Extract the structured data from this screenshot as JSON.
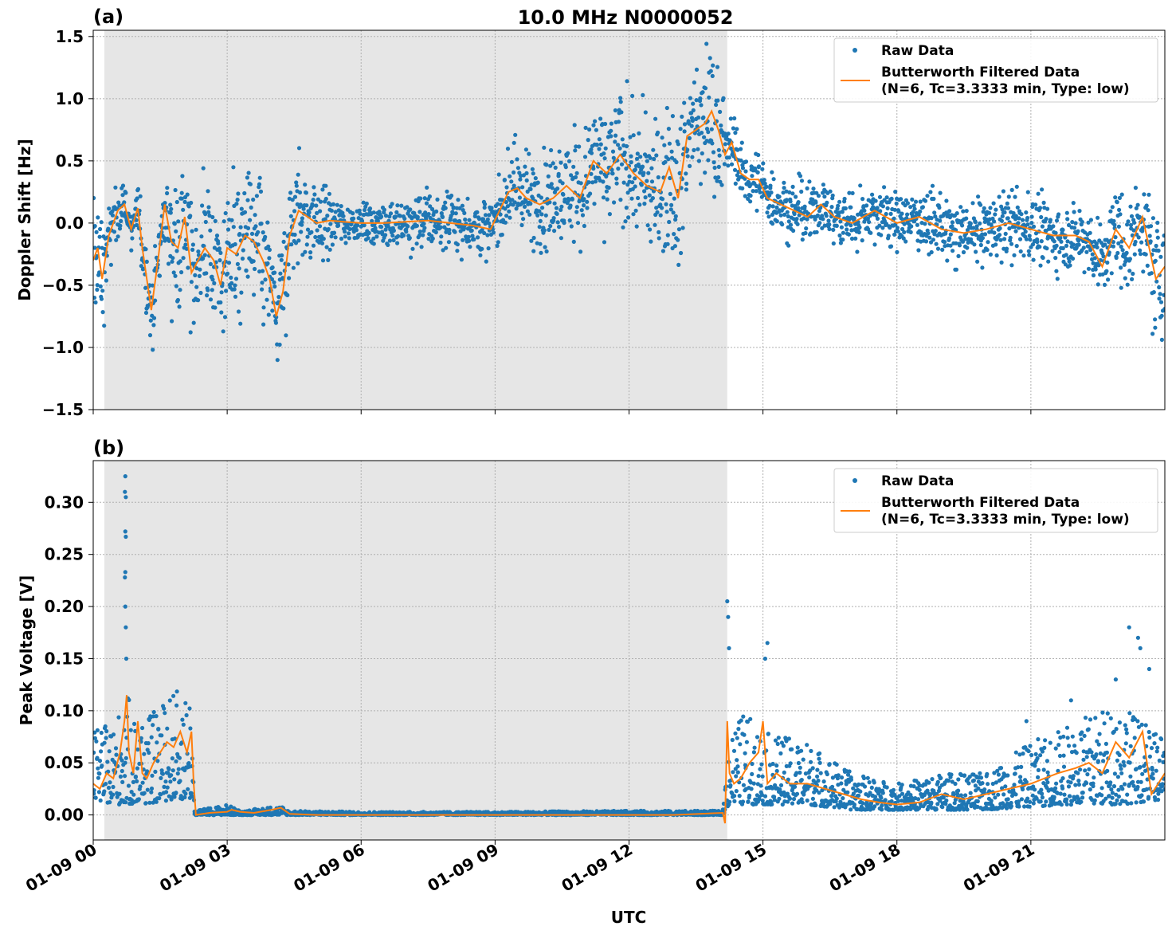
{
  "figure": {
    "title": "10.0 MHz N0000052",
    "xlabel": "UTC",
    "x_tick_labels": [
      "01-09 00",
      "01-09 03",
      "01-09 06",
      "01-09 09",
      "01-09 12",
      "01-09 15",
      "01-09 18",
      "01-09 21"
    ],
    "colors": {
      "raw": "#1f77b4",
      "filtered": "#ff7f0e",
      "shade": "#e6e6e6",
      "grid": "#b0b0b0"
    }
  },
  "chart_data": [
    {
      "type": "scatter",
      "panel_label": "(a)",
      "ylabel": "Doppler Shift [Hz]",
      "x_unit": "hours UTC on 01-09",
      "xlim": [
        0,
        24
      ],
      "ylim": [
        -1.5,
        1.55
      ],
      "y_ticks": [
        -1.5,
        -1.0,
        -0.5,
        0.0,
        0.5,
        1.0,
        1.5
      ],
      "y_tick_labels": [
        "−1.5",
        "−1.0",
        "−0.5",
        "0.0",
        "0.5",
        "1.0",
        "1.5"
      ],
      "shaded_interval": [
        0.25,
        14.2
      ],
      "grid": true,
      "legend": {
        "position": "top-right",
        "entries": [
          "Raw Data",
          "Butterworth Filtered Data",
          "(N=6, Tc=3.3333 min, Type: low)"
        ]
      },
      "series": [
        {
          "name": "Raw Data",
          "style": "dots",
          "spread_hours": [
            0,
            0.3,
            0.7,
            1.2,
            2.2,
            2.6,
            3.2,
            4.2,
            4.8,
            5.8,
            7.0,
            8.2,
            9.0,
            9.5,
            10.5,
            11.5,
            12.3,
            13.0,
            13.8,
            14.3,
            15.0,
            16.5,
            18.5,
            20.5,
            22.5,
            24.0
          ],
          "spread_hz": [
            0.45,
            0.3,
            0.12,
            0.25,
            0.5,
            0.45,
            0.45,
            0.45,
            0.35,
            0.12,
            0.18,
            0.2,
            0.2,
            0.3,
            0.35,
            0.4,
            0.45,
            0.5,
            0.5,
            0.2,
            0.2,
            0.2,
            0.2,
            0.22,
            0.25,
            0.4
          ]
        },
        {
          "name": "Butterworth Filtered Data",
          "style": "line",
          "x": [
            0,
            0.1,
            0.2,
            0.35,
            0.55,
            0.7,
            0.85,
            1.0,
            1.1,
            1.3,
            1.45,
            1.6,
            1.75,
            1.9,
            2.05,
            2.2,
            2.35,
            2.5,
            2.7,
            2.85,
            3.0,
            3.2,
            3.4,
            3.6,
            3.8,
            3.95,
            4.1,
            4.25,
            4.4,
            4.6,
            4.8,
            5.0,
            5.3,
            5.6,
            6.0,
            6.5,
            7.0,
            7.5,
            8.0,
            8.5,
            8.9,
            9.1,
            9.3,
            9.5,
            9.7,
            10.0,
            10.3,
            10.6,
            10.9,
            11.2,
            11.5,
            11.8,
            12.1,
            12.4,
            12.7,
            12.9,
            13.1,
            13.3,
            13.5,
            13.7,
            13.85,
            14.0,
            14.15,
            14.3,
            14.5,
            14.7,
            14.9,
            15.1,
            15.4,
            15.7,
            16.0,
            16.3,
            16.6,
            17.0,
            17.5,
            18.0,
            18.5,
            19.0,
            19.5,
            20.0,
            20.5,
            21.0,
            21.5,
            22.0,
            22.3,
            22.6,
            22.9,
            23.2,
            23.5,
            23.8,
            24.0
          ],
          "y": [
            -0.3,
            -0.2,
            -0.45,
            -0.1,
            0.1,
            0.15,
            -0.05,
            0.12,
            -0.2,
            -0.7,
            -0.3,
            0.15,
            -0.15,
            -0.2,
            0.05,
            -0.4,
            -0.3,
            -0.2,
            -0.3,
            -0.5,
            -0.2,
            -0.25,
            -0.1,
            -0.15,
            -0.3,
            -0.45,
            -0.75,
            -0.55,
            -0.1,
            0.1,
            0.05,
            0.0,
            0.02,
            0.01,
            0.0,
            0.0,
            0.01,
            0.02,
            0.0,
            -0.02,
            -0.05,
            0.1,
            0.25,
            0.28,
            0.2,
            0.15,
            0.2,
            0.3,
            0.2,
            0.5,
            0.4,
            0.55,
            0.4,
            0.3,
            0.25,
            0.45,
            0.2,
            0.7,
            0.75,
            0.8,
            0.9,
            0.75,
            0.55,
            0.65,
            0.4,
            0.35,
            0.35,
            0.2,
            0.15,
            0.1,
            0.05,
            0.15,
            0.05,
            0.0,
            0.1,
            0.0,
            0.05,
            -0.05,
            -0.08,
            -0.05,
            0.0,
            -0.05,
            -0.1,
            -0.1,
            -0.15,
            -0.35,
            -0.05,
            -0.2,
            0.05,
            -0.45,
            -0.35
          ]
        }
      ]
    },
    {
      "type": "scatter",
      "panel_label": "(b)",
      "ylabel": "Peak Voltage [V]",
      "x_unit": "hours UTC on 01-09",
      "xlim": [
        0,
        24
      ],
      "ylim": [
        -0.024,
        0.34
      ],
      "y_ticks": [
        0.0,
        0.05,
        0.1,
        0.15,
        0.2,
        0.25,
        0.3
      ],
      "y_tick_labels": [
        "0.00",
        "0.05",
        "0.10",
        "0.15",
        "0.20",
        "0.25",
        "0.30"
      ],
      "shaded_interval": [
        0.25,
        14.2
      ],
      "grid": true,
      "legend": {
        "position": "top-right",
        "entries": [
          "Raw Data",
          "Butterworth Filtered Data",
          "(N=6, Tc=3.3333 min, Type: low)"
        ]
      },
      "series": [
        {
          "name": "Raw Data",
          "style": "dots",
          "band_x": [
            0,
            0.5,
            0.72,
            1.0,
            1.4,
            1.8,
            2.2,
            2.27,
            3.0,
            3.3,
            4.2,
            4.4,
            6.0,
            9.0,
            12.0,
            14.1,
            14.25,
            14.6,
            15.0,
            16.0,
            17.0,
            18.0,
            19.0,
            20.0,
            21.0,
            22.0,
            23.0,
            24.0
          ],
          "band_low": [
            0.015,
            0.01,
            0.01,
            0.01,
            0.012,
            0.015,
            0.015,
            0.0,
            0.0,
            0.0,
            0.0,
            0.0,
            0.0,
            0.0,
            0.0,
            0.0,
            0.01,
            0.01,
            0.01,
            0.01,
            0.005,
            0.005,
            0.005,
            0.005,
            0.008,
            0.01,
            0.01,
            0.015
          ],
          "band_high": [
            0.08,
            0.09,
            0.12,
            0.09,
            0.1,
            0.12,
            0.12,
            0.004,
            0.01,
            0.004,
            0.009,
            0.004,
            0.003,
            0.003,
            0.004,
            0.004,
            0.08,
            0.1,
            0.08,
            0.07,
            0.04,
            0.03,
            0.04,
            0.04,
            0.07,
            0.09,
            0.11,
            0.07
          ],
          "peaks": [
            {
              "x": 0.72,
              "y": 0.325
            },
            {
              "x": 0.71,
              "y": 0.31
            },
            {
              "x": 0.73,
              "y": 0.305
            },
            {
              "x": 0.72,
              "y": 0.272
            },
            {
              "x": 0.73,
              "y": 0.267
            },
            {
              "x": 0.72,
              "y": 0.233
            },
            {
              "x": 0.71,
              "y": 0.228
            },
            {
              "x": 0.72,
              "y": 0.2
            },
            {
              "x": 0.73,
              "y": 0.18
            },
            {
              "x": 0.74,
              "y": 0.15
            },
            {
              "x": 14.2,
              "y": 0.205
            },
            {
              "x": 14.22,
              "y": 0.19
            },
            {
              "x": 14.24,
              "y": 0.16
            },
            {
              "x": 15.1,
              "y": 0.165
            },
            {
              "x": 15.05,
              "y": 0.15
            },
            {
              "x": 23.2,
              "y": 0.18
            },
            {
              "x": 23.4,
              "y": 0.17
            },
            {
              "x": 23.45,
              "y": 0.16
            },
            {
              "x": 22.9,
              "y": 0.13
            },
            {
              "x": 23.65,
              "y": 0.14
            },
            {
              "x": 20.9,
              "y": 0.09
            },
            {
              "x": 21.9,
              "y": 0.11
            }
          ]
        },
        {
          "name": "Butterworth Filtered Data",
          "style": "line",
          "x": [
            0,
            0.15,
            0.3,
            0.45,
            0.6,
            0.7,
            0.75,
            0.8,
            0.9,
            1.0,
            1.1,
            1.2,
            1.35,
            1.5,
            1.65,
            1.8,
            1.95,
            2.1,
            2.2,
            2.25,
            2.3,
            2.6,
            3.0,
            3.1,
            3.3,
            3.6,
            4.0,
            4.2,
            4.4,
            5.0,
            7.0,
            9.0,
            11.0,
            13.0,
            14.1,
            14.15,
            14.2,
            14.25,
            14.35,
            14.5,
            14.7,
            14.9,
            15.0,
            15.1,
            15.3,
            15.6,
            16.0,
            16.4,
            16.8,
            17.2,
            17.6,
            18.0,
            18.5,
            19.0,
            19.5,
            20.0,
            20.5,
            21.0,
            21.3,
            21.6,
            22.0,
            22.3,
            22.6,
            22.9,
            23.2,
            23.5,
            23.7,
            24.0
          ],
          "y": [
            0.03,
            0.025,
            0.04,
            0.035,
            0.06,
            0.09,
            0.115,
            0.06,
            0.04,
            0.09,
            0.04,
            0.035,
            0.05,
            0.06,
            0.07,
            0.065,
            0.08,
            0.06,
            0.08,
            0.03,
            0.0,
            0.002,
            0.003,
            0.005,
            0.003,
            0.002,
            0.005,
            0.007,
            0.001,
            0.0,
            0.0,
            0.0,
            0.0,
            0.0,
            0.002,
            -0.008,
            0.09,
            0.04,
            0.03,
            0.035,
            0.05,
            0.06,
            0.09,
            0.03,
            0.04,
            0.03,
            0.03,
            0.025,
            0.02,
            0.015,
            0.012,
            0.01,
            0.012,
            0.02,
            0.015,
            0.02,
            0.025,
            0.03,
            0.035,
            0.04,
            0.045,
            0.05,
            0.04,
            0.07,
            0.055,
            0.08,
            0.02,
            0.04
          ]
        }
      ]
    }
  ]
}
